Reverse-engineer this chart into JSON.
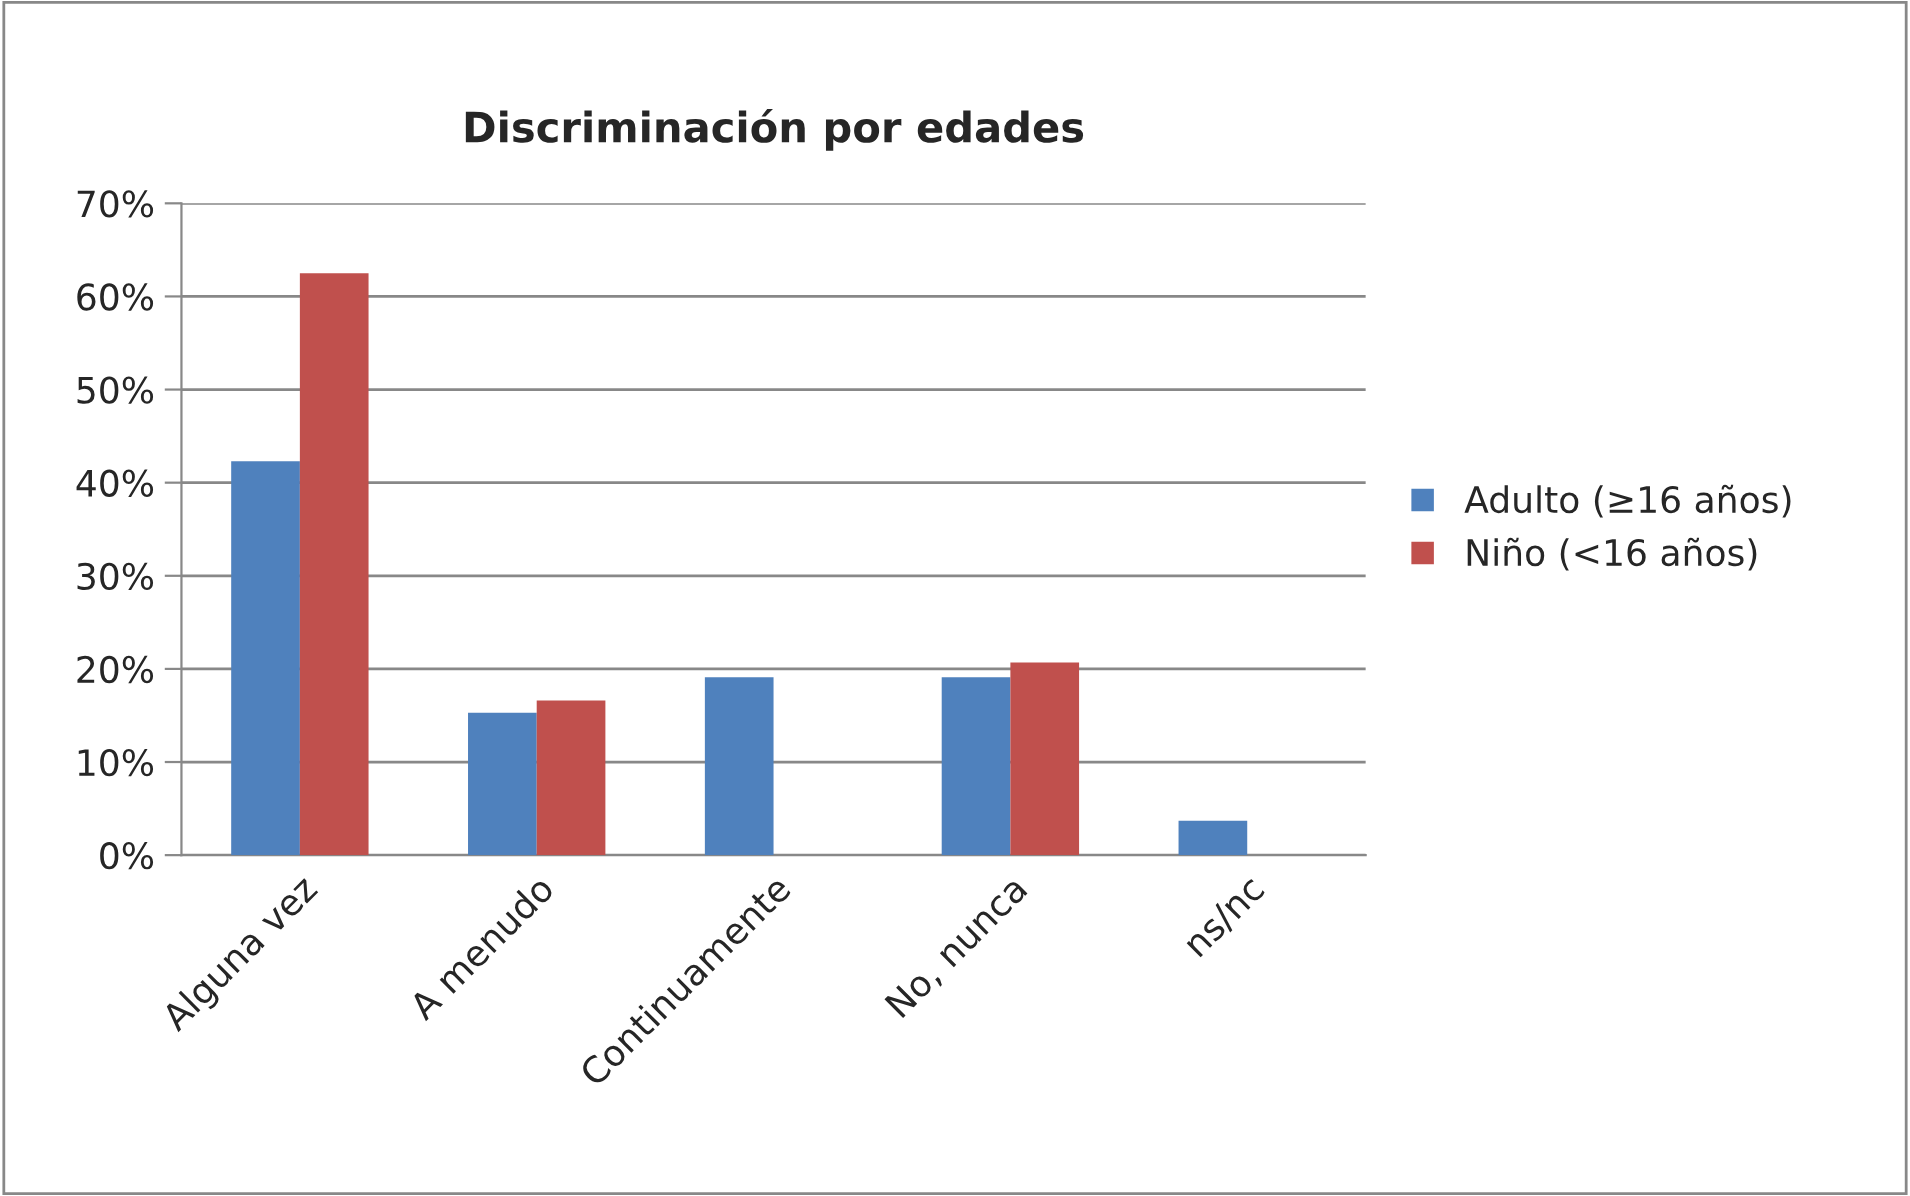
{
  "chart_data": {
    "type": "bar",
    "title": "Discriminación por edades",
    "categories": [
      "Alguna vez",
      "A menudo",
      "Continuamente",
      "No, nunca",
      "ns/nc"
    ],
    "series": [
      {
        "name": "Adulto (≥16 años)",
        "color": "#4f81bd",
        "values": [
          42.3,
          15.3,
          19.1,
          19.1,
          3.7
        ]
      },
      {
        "name": "Niño (<16 años)",
        "color": "#c0504d",
        "values": [
          62.5,
          16.6,
          null,
          20.7,
          null
        ]
      }
    ],
    "ylim": [
      0,
      70
    ],
    "yticks": [
      {
        "value": 0,
        "label": "0%"
      },
      {
        "value": 10,
        "label": "10%"
      },
      {
        "value": 20,
        "label": "20%"
      },
      {
        "value": 30,
        "label": "30%"
      },
      {
        "value": 40,
        "label": "40%"
      },
      {
        "value": 50,
        "label": "50%"
      },
      {
        "value": 60,
        "label": "60%"
      },
      {
        "value": 70,
        "label": "70%"
      }
    ],
    "grid": "y",
    "legend": "right"
  }
}
